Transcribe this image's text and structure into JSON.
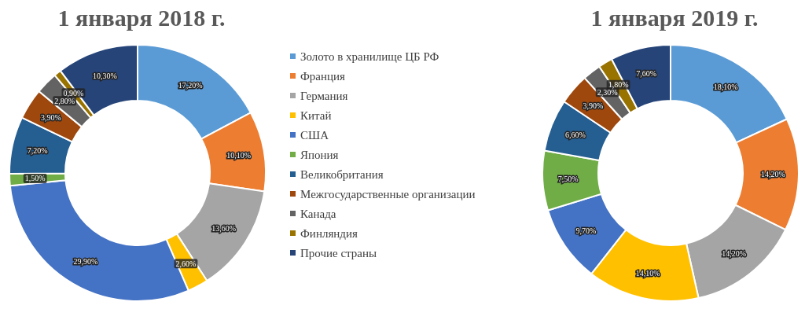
{
  "chart_data": {
    "type": "donut",
    "legend": "right",
    "categories": [
      "Золото в хранилище ЦБ РФ",
      "Франция",
      "Германия",
      "Китай",
      "США",
      "Япония",
      "Великобритания",
      "Межгосударственные организации",
      "Канада",
      "Финляндия",
      "Прочие страны"
    ],
    "colors": [
      "#5b9bd5",
      "#ed7d31",
      "#a5a5a5",
      "#ffc000",
      "#4472c4",
      "#70ad47",
      "#255e91",
      "#9e480e",
      "#636363",
      "#997300",
      "#264478"
    ],
    "series": [
      {
        "name": "1 января 2018 г.",
        "values": [
          17.2,
          10.1,
          13.6,
          2.6,
          29.9,
          1.5,
          7.2,
          3.9,
          2.8,
          0.9,
          10.3
        ],
        "value_labels": [
          "17,20%",
          "10,10%",
          "13,60%",
          "2,60%",
          "29,90%",
          "1,50%",
          "7,20%",
          "3,90%",
          "2,80%",
          "0,90%",
          "10,30%"
        ]
      },
      {
        "name": "1 января 2019 г.",
        "values": [
          18.1,
          14.2,
          14.2,
          14.1,
          9.7,
          7.5,
          6.6,
          3.9,
          2.3,
          1.8,
          7.6
        ],
        "value_labels": [
          "18,10%",
          "14,20%",
          "14,20%",
          "14,10%",
          "9,70%",
          "7,50%",
          "6,60%",
          "3,90%",
          "2,30%",
          "1,80%",
          "7,60%"
        ]
      }
    ]
  }
}
